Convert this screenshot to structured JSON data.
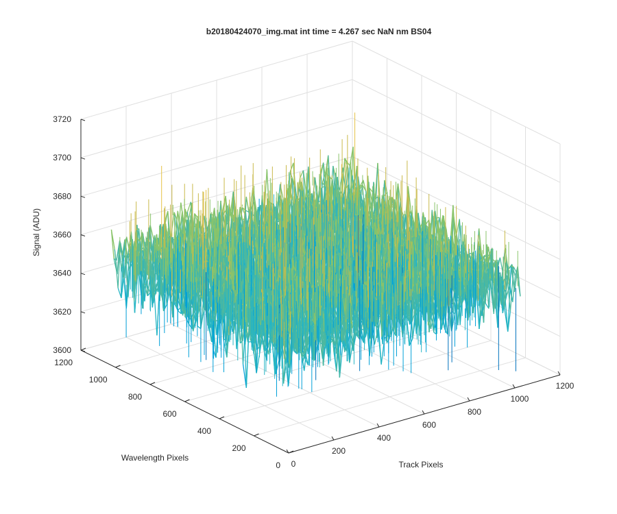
{
  "chart_data": {
    "type": "surface",
    "title": "b20180424070_img.mat int time = 4.267 sec  NaN nm BS04",
    "xlabel": "Track Pixels",
    "ylabel": "Wavelength Pixels",
    "zlabel": "Signal (ADU)",
    "xlim": [
      0,
      1200
    ],
    "ylim": [
      0,
      1200
    ],
    "zlim": [
      3600,
      3720
    ],
    "xticks": [
      "0",
      "200",
      "400",
      "600",
      "800",
      "1000",
      "1200"
    ],
    "yticks": [
      "0",
      "200",
      "400",
      "600",
      "800",
      "1000",
      "1200"
    ],
    "zticks": [
      "3600",
      "3620",
      "3640",
      "3660",
      "3680",
      "3700",
      "3720"
    ],
    "data_extent": {
      "x": [
        0,
        1024
      ],
      "y": [
        0,
        1024
      ]
    },
    "signal_mean": 3655,
    "signal_range": [
      3600,
      3710
    ],
    "grid": true,
    "colormap": [
      "#0072BD",
      "#00A0D8",
      "#26B5C4",
      "#4CB8A0",
      "#8AC46A",
      "#C9B94A",
      "#E5C145"
    ]
  }
}
